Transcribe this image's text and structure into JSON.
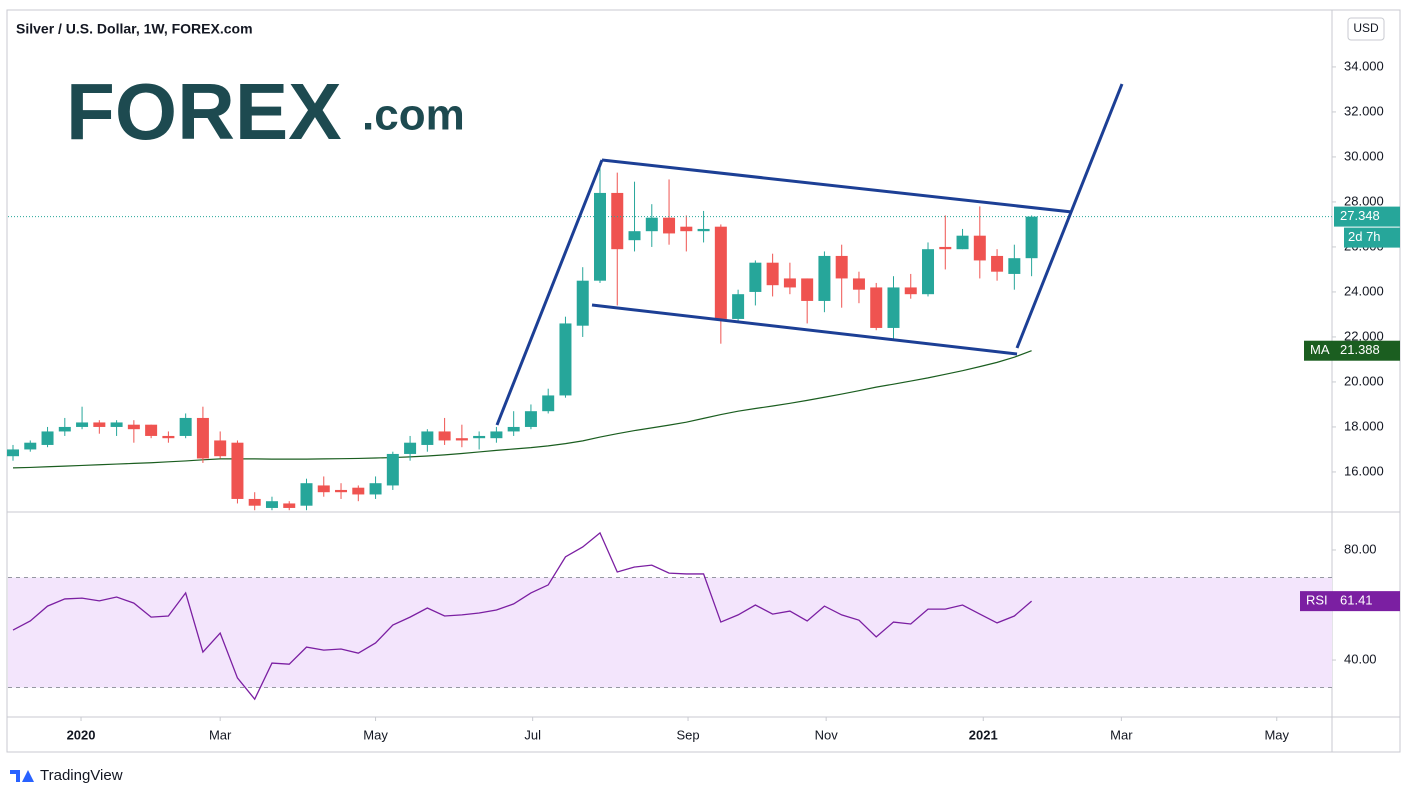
{
  "chart_data": [
    {
      "type": "candlestick",
      "title": "Silver / U.S. Dollar, 1W, FOREX.com",
      "currency": "USD",
      "x": [
        0,
        1,
        2,
        3,
        4,
        5,
        6,
        7,
        8,
        9,
        10,
        11,
        12,
        13,
        14,
        15,
        16,
        17,
        18,
        19,
        20,
        21,
        22,
        23,
        24,
        25,
        26,
        27,
        28,
        29,
        30,
        31,
        32,
        33,
        34,
        35,
        36,
        37,
        38,
        39,
        40,
        41,
        42,
        43,
        44,
        45,
        46,
        47,
        48,
        49,
        50,
        51,
        52,
        53,
        54,
        55,
        56,
        57,
        58,
        59
      ],
      "open": [
        16.7,
        17.0,
        17.2,
        17.8,
        18.0,
        18.2,
        18.0,
        18.1,
        18.1,
        17.6,
        17.6,
        18.4,
        17.4,
        17.3,
        14.8,
        14.4,
        14.6,
        14.5,
        15.4,
        15.2,
        15.3,
        15.0,
        15.4,
        16.8,
        17.2,
        17.8,
        17.5,
        17.5,
        17.5,
        17.8,
        18.0,
        18.7,
        19.4,
        22.5,
        24.5,
        28.4,
        26.3,
        26.7,
        27.3,
        26.9,
        26.7,
        26.9,
        22.8,
        24.0,
        25.3,
        24.6,
        24.6,
        23.6,
        25.6,
        24.6,
        24.2,
        22.4,
        24.2,
        23.9,
        26.0,
        25.9,
        26.5,
        25.6,
        24.8,
        25.5
      ],
      "high": [
        17.2,
        17.4,
        18.0,
        18.4,
        18.9,
        18.3,
        18.3,
        18.3,
        18.1,
        17.8,
        18.6,
        18.9,
        17.8,
        17.4,
        15.1,
        14.9,
        14.7,
        15.7,
        15.8,
        15.5,
        15.4,
        15.8,
        16.9,
        17.6,
        17.9,
        18.4,
        18.1,
        17.8,
        18.0,
        18.7,
        19.0,
        19.7,
        22.9,
        25.1,
        29.8,
        29.3,
        28.9,
        27.9,
        29.0,
        27.4,
        27.6,
        27.0,
        24.1,
        25.4,
        25.7,
        25.3,
        24.6,
        25.8,
        26.1,
        24.9,
        24.4,
        24.7,
        24.8,
        26.2,
        27.4,
        26.8,
        27.8,
        25.9,
        26.1,
        27.4
      ],
      "low": [
        16.5,
        16.9,
        17.1,
        17.6,
        17.9,
        17.7,
        17.6,
        17.3,
        17.5,
        17.3,
        17.5,
        16.4,
        16.6,
        14.6,
        14.3,
        14.3,
        14.3,
        14.3,
        14.9,
        14.8,
        14.7,
        14.8,
        15.2,
        16.5,
        16.9,
        17.2,
        17.1,
        17.0,
        17.3,
        17.6,
        17.9,
        18.6,
        19.3,
        22.0,
        24.4,
        23.4,
        25.8,
        26.0,
        26.1,
        25.8,
        26.2,
        21.7,
        22.7,
        23.4,
        23.8,
        23.9,
        22.6,
        23.1,
        23.3,
        23.5,
        22.3,
        21.9,
        23.7,
        23.8,
        25.0,
        25.9,
        24.6,
        24.5,
        24.1,
        24.7
      ],
      "close": [
        17.0,
        17.3,
        17.8,
        18.0,
        18.2,
        18.0,
        18.2,
        17.9,
        17.6,
        17.5,
        18.4,
        16.6,
        16.7,
        14.8,
        14.5,
        14.7,
        14.4,
        15.5,
        15.1,
        15.1,
        15.0,
        15.5,
        16.8,
        17.3,
        17.8,
        17.4,
        17.4,
        17.6,
        17.8,
        18.0,
        18.7,
        19.4,
        22.6,
        24.5,
        28.4,
        25.9,
        26.7,
        27.3,
        26.6,
        26.7,
        26.8,
        22.8,
        23.9,
        25.3,
        24.3,
        24.2,
        23.6,
        25.6,
        24.6,
        24.1,
        22.4,
        24.2,
        23.9,
        25.9,
        25.9,
        26.5,
        25.4,
        24.9,
        25.5,
        27.348
      ],
      "up_color": "#26a69a",
      "down_color": "#ef5350",
      "last_label": "27.348",
      "countdown": "2d 7h",
      "series": [
        {
          "name": "MA",
          "color": "#1b5e20",
          "last_label": "21.388",
          "values": [
            16.18,
            16.2,
            16.23,
            16.26,
            16.29,
            16.32,
            16.35,
            16.38,
            16.41,
            16.45,
            16.49,
            16.54,
            16.58,
            16.58,
            16.58,
            16.57,
            16.57,
            16.57,
            16.58,
            16.59,
            16.6,
            16.62,
            16.64,
            16.67,
            16.71,
            16.76,
            16.82,
            16.89,
            16.96,
            17.02,
            17.08,
            17.16,
            17.26,
            17.38,
            17.55,
            17.7,
            17.84,
            17.96,
            18.08,
            18.21,
            18.38,
            18.55,
            18.7,
            18.82,
            18.93,
            19.05,
            19.18,
            19.32,
            19.46,
            19.61,
            19.77,
            19.9,
            20.04,
            20.18,
            20.34,
            20.5,
            20.68,
            20.87,
            21.1,
            21.388
          ]
        }
      ],
      "xlim": [
        -0.29,
        76.4
      ],
      "xticks": [
        {
          "value": 3.94,
          "label": "2020"
        },
        {
          "value": 12.0,
          "label": "Mar"
        },
        {
          "value": 21.0,
          "label": "May"
        },
        {
          "value": 30.1,
          "label": "Jul"
        },
        {
          "value": 39.1,
          "label": "Sep"
        },
        {
          "value": 47.1,
          "label": "Nov"
        },
        {
          "value": 56.2,
          "label": "2021"
        },
        {
          "value": 64.2,
          "label": "Mar"
        },
        {
          "value": 73.2,
          "label": "May"
        }
      ],
      "ylim": [
        14.22,
        36.53
      ],
      "yticks": [
        {
          "value": 16,
          "label": "16.000"
        },
        {
          "value": 18,
          "label": "18.000"
        },
        {
          "value": 20,
          "label": "20.000"
        },
        {
          "value": 22,
          "label": "22.000"
        },
        {
          "value": 24,
          "label": "24.000"
        },
        {
          "value": 26,
          "label": "26.000"
        },
        {
          "value": 28,
          "label": "28.000"
        },
        {
          "value": 30,
          "label": "30.000"
        },
        {
          "value": 32,
          "label": "32.000"
        },
        {
          "value": 34,
          "label": "34.000"
        }
      ]
    },
    {
      "type": "line",
      "x": [
        0,
        1,
        2,
        3,
        4,
        5,
        6,
        7,
        8,
        9,
        10,
        11,
        12,
        13,
        14,
        15,
        16,
        17,
        18,
        19,
        20,
        21,
        22,
        23,
        24,
        25,
        26,
        27,
        28,
        29,
        30,
        31,
        32,
        33,
        34,
        35,
        36,
        37,
        38,
        39,
        40,
        41,
        42,
        43,
        44,
        45,
        46,
        47,
        48,
        49,
        50,
        51,
        52,
        53,
        54,
        55,
        56,
        57,
        58,
        59
      ],
      "series": [
        {
          "name": "RSI",
          "color": "#7b1fa2",
          "last_label": "61.41",
          "values": [
            50.9,
            54.2,
            59.6,
            62.2,
            62.5,
            61.5,
            62.9,
            60.7,
            55.6,
            56.0,
            64.4,
            42.9,
            49.8,
            33.5,
            25.8,
            38.9,
            38.5,
            44.7,
            43.6,
            44.0,
            42.5,
            46.2,
            52.7,
            55.6,
            58.9,
            56.0,
            56.4,
            57.1,
            58.2,
            60.4,
            64.4,
            67.3,
            77.5,
            81.1,
            86.2,
            72.0,
            73.8,
            74.5,
            71.6,
            71.3,
            71.3,
            53.8,
            56.4,
            60.0,
            56.7,
            57.8,
            54.2,
            59.6,
            56.4,
            54.5,
            48.4,
            53.8,
            53.1,
            58.5,
            58.5,
            60.0,
            56.7,
            53.5,
            56.0,
            61.41
          ]
        }
      ],
      "band": [
        30,
        70
      ],
      "band_color": "#f3e5fc",
      "xlim": [
        -0.29,
        76.4
      ],
      "ylim": [
        19.3,
        93.8
      ],
      "yticks": [
        {
          "value": 40,
          "label": "40.00"
        },
        {
          "value": 80,
          "label": "80.00"
        }
      ]
    }
  ],
  "branding": {
    "watermark": "FOREX",
    "watermark_suffix": ".com",
    "footer": "TradingView"
  }
}
